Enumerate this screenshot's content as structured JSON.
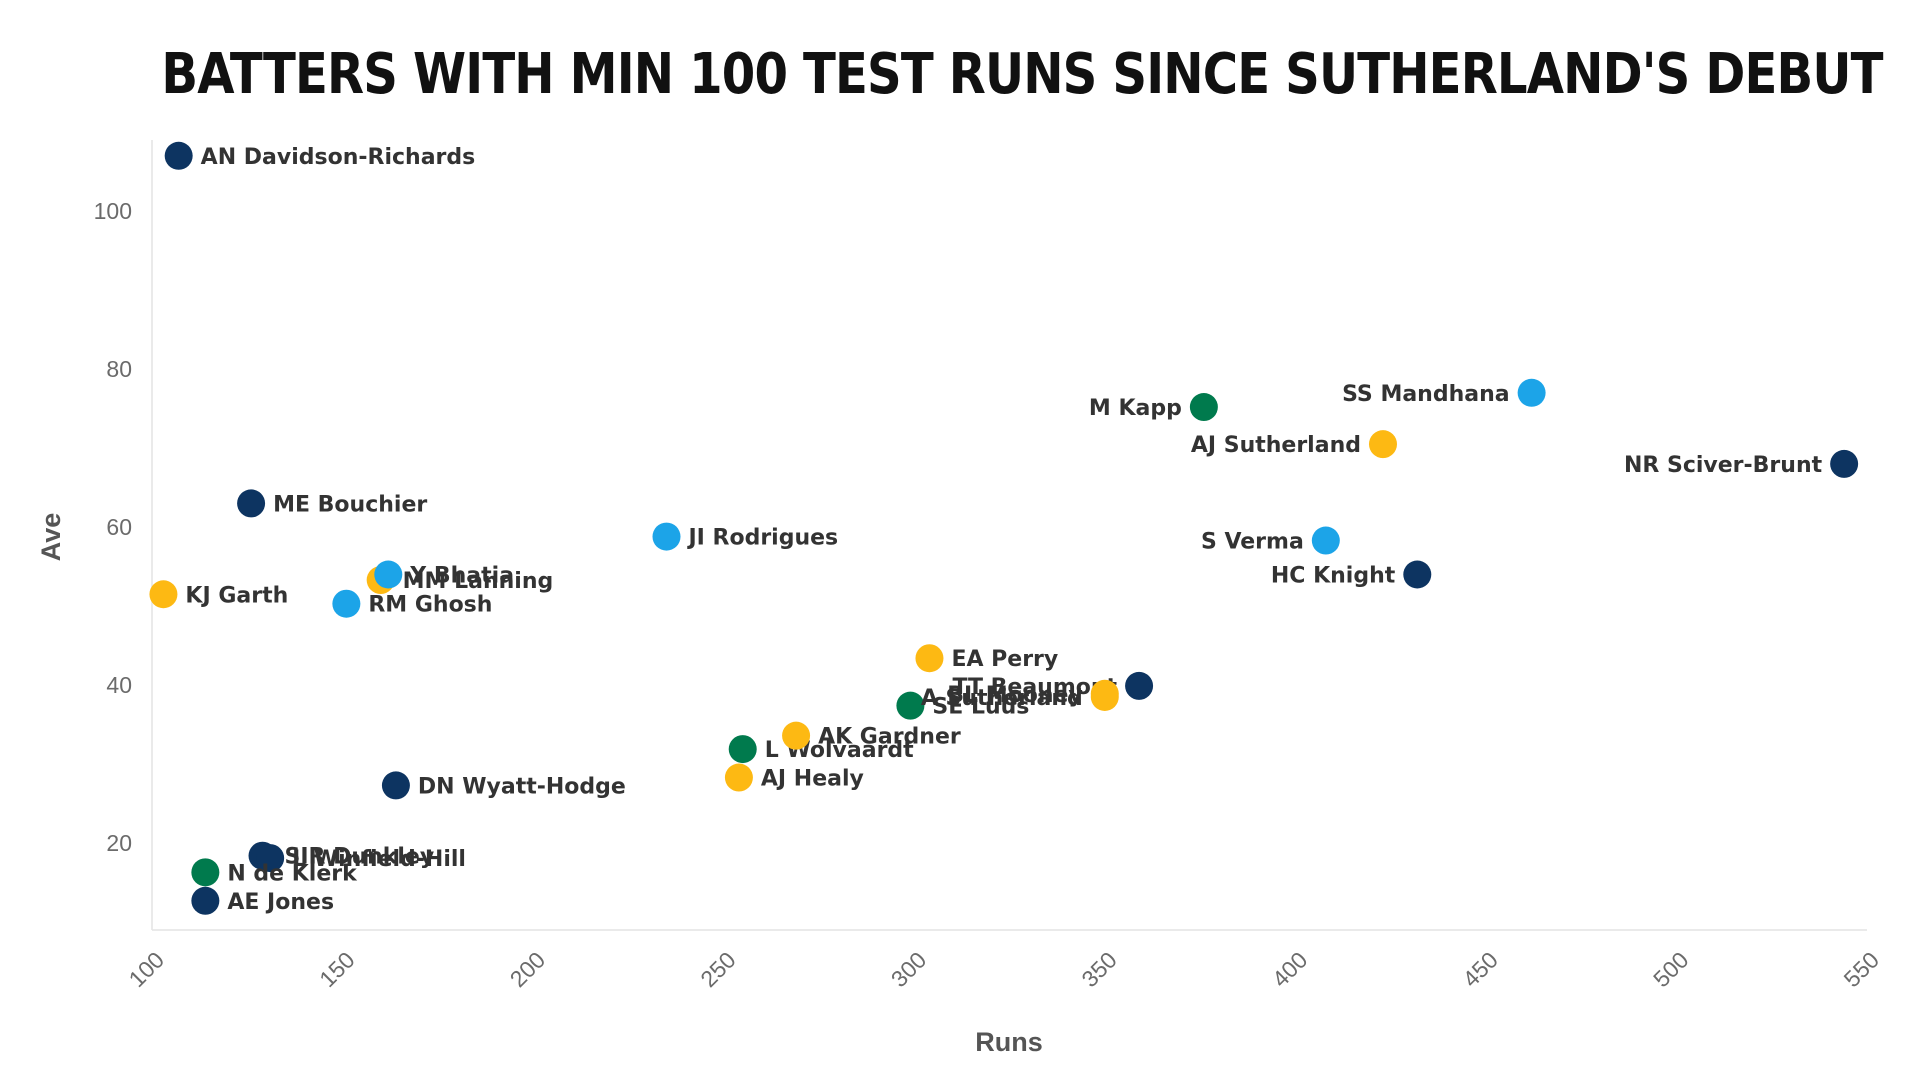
{
  "chart_data": {
    "type": "scatter",
    "title": "Batters with min 100 Test runs since Sutherland's debut",
    "xlabel": "Runs",
    "ylabel": "Ave",
    "xlim": [
      100,
      550
    ],
    "ylim": [
      9,
      109
    ],
    "xticks": [
      100,
      150,
      200,
      250,
      300,
      350,
      400,
      450,
      500,
      550
    ],
    "yticks": [
      20,
      40,
      60,
      80,
      100
    ],
    "grid": false,
    "legend": "none",
    "team_colors": {
      "England": "#0d3461",
      "Australia": "#fdb913",
      "India": "#1ca4e8",
      "South Africa": "#007a4d"
    },
    "points": [
      {
        "name": "AN Davidson-Richards",
        "runs": 107,
        "ave": 107.0,
        "team": "England",
        "label_side": "right"
      },
      {
        "name": "ME Bouchier",
        "runs": 126,
        "ave": 63.0,
        "team": "England",
        "label_side": "right"
      },
      {
        "name": "KJ Garth",
        "runs": 103,
        "ave": 51.5,
        "team": "Australia",
        "label_side": "right"
      },
      {
        "name": "MM Lanning",
        "runs": 160,
        "ave": 53.3,
        "team": "Australia",
        "label_side": "right"
      },
      {
        "name": "Y Bhatia",
        "runs": 162,
        "ave": 54.0,
        "team": "India",
        "label_side": "right"
      },
      {
        "name": "RM Ghosh",
        "runs": 151,
        "ave": 50.3,
        "team": "India",
        "label_side": "right"
      },
      {
        "name": "JI Rodrigues",
        "runs": 235,
        "ave": 58.8,
        "team": "India",
        "label_side": "right"
      },
      {
        "name": "DN Wyatt-Hodge",
        "runs": 164,
        "ave": 27.3,
        "team": "England",
        "label_side": "right"
      },
      {
        "name": "SIR Dunkley",
        "runs": 129,
        "ave": 18.4,
        "team": "England",
        "label_side": "right"
      },
      {
        "name": "L Winfield-Hill",
        "runs": 131,
        "ave": 18.1,
        "team": "England",
        "label_side": "right"
      },
      {
        "name": "N de Klerk",
        "runs": 114,
        "ave": 16.3,
        "team": "South Africa",
        "label_side": "right"
      },
      {
        "name": "AE Jones",
        "runs": 114,
        "ave": 12.7,
        "team": "England",
        "label_side": "right"
      },
      {
        "name": "AJ Healy",
        "runs": 254,
        "ave": 28.3,
        "team": "Australia",
        "label_side": "right"
      },
      {
        "name": "L Wolvaardt",
        "runs": 255,
        "ave": 31.9,
        "team": "South Africa",
        "label_side": "right"
      },
      {
        "name": "AK Gardner",
        "runs": 269,
        "ave": 33.6,
        "team": "Australia",
        "label_side": "right"
      },
      {
        "name": "SE Luus",
        "runs": 299,
        "ave": 37.4,
        "team": "South Africa",
        "label_side": "right"
      },
      {
        "name": "EA Perry",
        "runs": 304,
        "ave": 43.4,
        "team": "Australia",
        "label_side": "right"
      },
      {
        "name": "TT Beaumont",
        "runs": 359,
        "ave": 39.9,
        "team": "England",
        "label_side": "left"
      },
      {
        "name": "BL Mooney",
        "runs": 350,
        "ave": 38.9,
        "team": "Australia",
        "label_side": "left"
      },
      {
        "name": "A Sutherland",
        "runs": 350,
        "ave": 38.5,
        "team": "Australia",
        "label_side": "left"
      },
      {
        "name": "M Kapp",
        "runs": 376,
        "ave": 75.2,
        "team": "South Africa",
        "label_side": "left"
      },
      {
        "name": "AJ Sutherland",
        "runs": 423,
        "ave": 70.5,
        "team": "Australia",
        "label_side": "left"
      },
      {
        "name": "SS Mandhana",
        "runs": 462,
        "ave": 77.0,
        "team": "India",
        "label_side": "left"
      },
      {
        "name": "NR Sciver-Brunt",
        "runs": 544,
        "ave": 68.0,
        "team": "England",
        "label_side": "left"
      },
      {
        "name": "S Verma",
        "runs": 408,
        "ave": 58.3,
        "team": "India",
        "label_side": "left"
      },
      {
        "name": "HC Knight",
        "runs": 432,
        "ave": 54.0,
        "team": "England",
        "label_side": "left"
      }
    ]
  }
}
